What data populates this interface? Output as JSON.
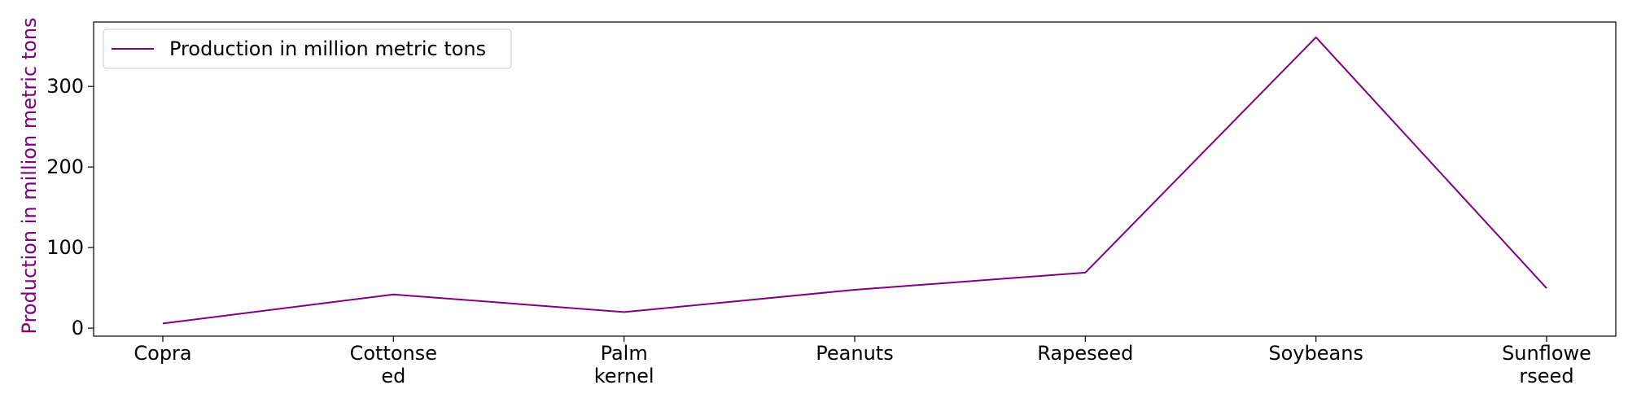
{
  "colors": {
    "series": "#800080",
    "axis": "#000000",
    "legend_border": "#cccccc",
    "background": "#ffffff"
  },
  "chart_data": {
    "type": "line",
    "categories": [
      "Copra",
      "Cottonseed",
      "Palm kernel",
      "Peanuts",
      "Rapeseed",
      "Soybeans",
      "Sunflowerseed"
    ],
    "category_labels": [
      [
        "Copra"
      ],
      [
        "Cottonse",
        "ed"
      ],
      [
        "Palm",
        "kernel"
      ],
      [
        "Peanuts"
      ],
      [
        "Rapeseed"
      ],
      [
        "Soybeans"
      ],
      [
        "Sunflowe",
        "rseed"
      ]
    ],
    "series": [
      {
        "name": "Production in million metric tons",
        "values": [
          5.8,
          41.8,
          19.9,
          47.6,
          68.9,
          361.0,
          49.5
        ]
      }
    ],
    "title": "",
    "xlabel": "",
    "ylabel": "Production in million metric tons",
    "ylim": [
      -10,
      380
    ],
    "yticks": [
      0,
      100,
      200,
      300
    ],
    "grid": false,
    "legend_position": "upper-left"
  }
}
